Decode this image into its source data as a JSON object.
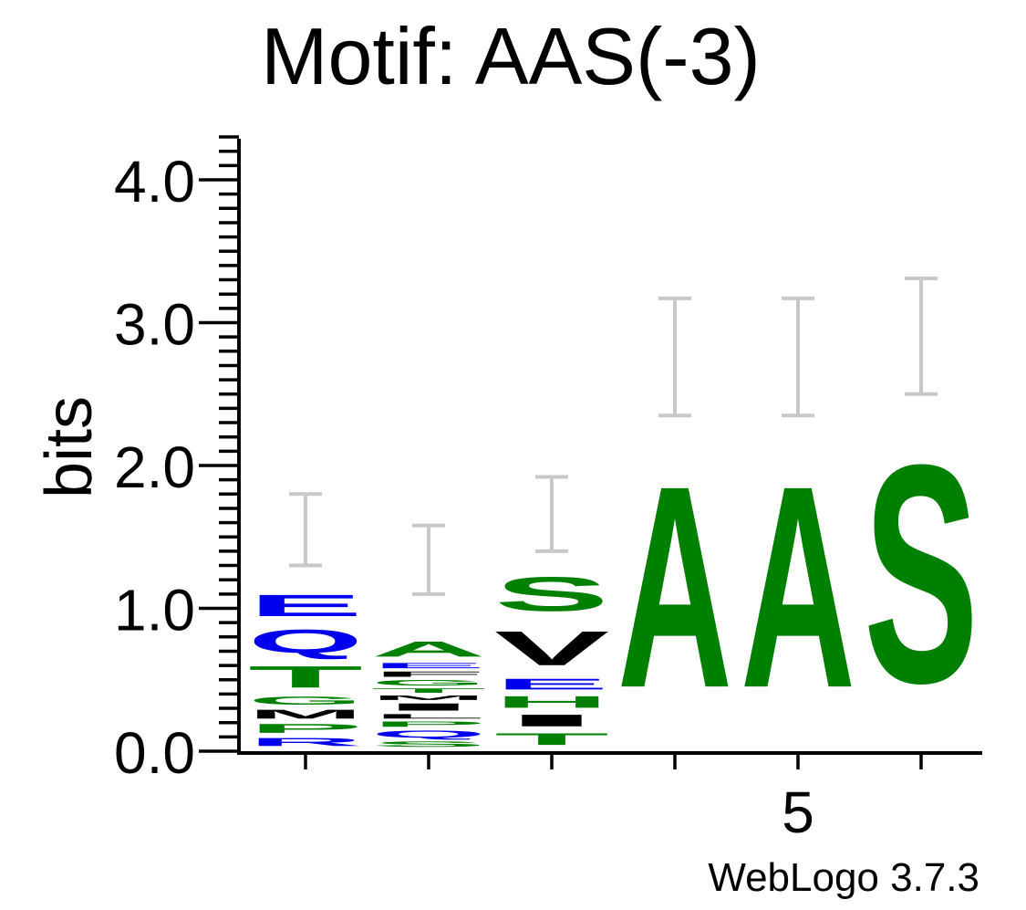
{
  "chart_data": {
    "type": "sequence-logo",
    "title": "Motif: AAS(-3)",
    "ylabel": "bits",
    "xlabel": "",
    "ylim": [
      0,
      4.3
    ],
    "y_major_ticks": [
      0,
      1,
      2,
      3,
      4
    ],
    "y_tick_labels": [
      "0.0",
      "1.0",
      "2.0",
      "3.0",
      "4.0"
    ],
    "y_minor_step": 0.1,
    "x_tick_labels": [
      {
        "position": 1,
        "label": ""
      },
      {
        "position": 2,
        "label": ""
      },
      {
        "position": 3,
        "label": ""
      },
      {
        "position": 4,
        "label": ""
      },
      {
        "position": 5,
        "label": "5"
      },
      {
        "position": 6,
        "label": ""
      }
    ],
    "footer": "WebLogo 3.7.3",
    "colors": {
      "blue": "#0000ee",
      "green": "#008000",
      "black": "#000000",
      "error_bar": "#c8c8c8"
    },
    "positions": [
      {
        "position": 1,
        "stack": [
          {
            "letter": "R",
            "height": 0.09,
            "color": "blue"
          },
          {
            "letter": "P",
            "height": 0.1,
            "color": "green"
          },
          {
            "letter": "M",
            "height": 0.1,
            "color": "black"
          },
          {
            "letter": "G",
            "height": 0.09,
            "color": "green"
          },
          {
            "letter": "T",
            "height": 0.24,
            "color": "green"
          },
          {
            "letter": "Q",
            "height": 0.26,
            "color": "blue"
          },
          {
            "letter": "E",
            "height": 0.24,
            "color": "blue"
          }
        ],
        "error_bar": [
          1.3,
          1.8
        ]
      },
      {
        "position": 2,
        "stack": [
          {
            "letter": "S",
            "height": 0.06,
            "color": "green"
          },
          {
            "letter": "Q",
            "height": 0.08,
            "color": "blue"
          },
          {
            "letter": "P",
            "height": 0.06,
            "color": "green"
          },
          {
            "letter": "L",
            "height": 0.05,
            "color": "black"
          },
          {
            "letter": "I",
            "height": 0.08,
            "color": "black"
          },
          {
            "letter": "M",
            "height": 0.05,
            "color": "black"
          },
          {
            "letter": "T",
            "height": 0.05,
            "color": "green"
          },
          {
            "letter": "G",
            "height": 0.06,
            "color": "green"
          },
          {
            "letter": "F",
            "height": 0.06,
            "color": "black"
          },
          {
            "letter": "E",
            "height": 0.06,
            "color": "blue"
          },
          {
            "letter": "A",
            "height": 0.17,
            "color": "green"
          }
        ],
        "error_bar": [
          1.1,
          1.58
        ]
      },
      {
        "position": 3,
        "stack": [
          {
            "letter": "T",
            "height": 0.13,
            "color": "green"
          },
          {
            "letter": "I",
            "height": 0.13,
            "color": "black"
          },
          {
            "letter": "H",
            "height": 0.13,
            "color": "green"
          },
          {
            "letter": "E",
            "height": 0.12,
            "color": "blue"
          },
          {
            "letter": "V",
            "height": 0.38,
            "color": "black"
          },
          {
            "letter": "S",
            "height": 0.38,
            "color": "green"
          }
        ],
        "error_bar": [
          1.4,
          1.92
        ]
      },
      {
        "position": 4,
        "stack": [
          {
            "letter": "A",
            "height": 2.25,
            "color": "green"
          }
        ],
        "error_bar": [
          2.35,
          3.17
        ]
      },
      {
        "position": 5,
        "stack": [
          {
            "letter": "A",
            "height": 2.25,
            "color": "green"
          }
        ],
        "error_bar": [
          2.35,
          3.17
        ]
      },
      {
        "position": 6,
        "stack": [
          {
            "letter": "S",
            "height": 2.43,
            "color": "green"
          }
        ],
        "error_bar": [
          2.5,
          3.31
        ]
      }
    ]
  }
}
